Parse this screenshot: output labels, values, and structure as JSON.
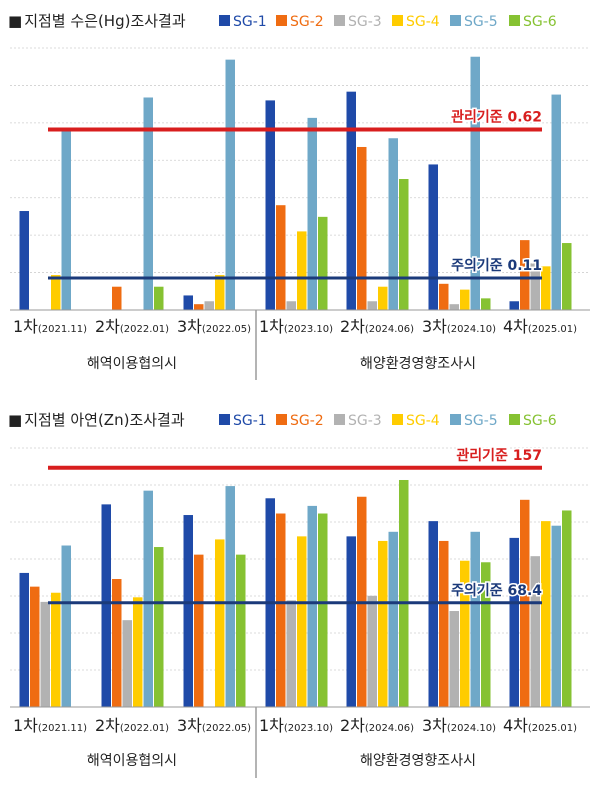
{
  "series_colors": {
    "SG-1": "#1f4aa8",
    "SG-2": "#ef6c12",
    "SG-3": "#b2b2b2",
    "SG-4": "#ffcc00",
    "SG-5": "#6fa8c8",
    "SG-6": "#86c232"
  },
  "chart_data": [
    {
      "type": "bar",
      "title": "지점별 수은(Hg)조사결과",
      "title_marker": "■",
      "series_names": [
        "SG-1",
        "SG-2",
        "SG-3",
        "SG-4",
        "SG-5",
        "SG-6"
      ],
      "categories": [
        {
          "main": "1차",
          "sub": "(2021.11)"
        },
        {
          "main": "2차",
          "sub": "(2022.01)"
        },
        {
          "main": "3차",
          "sub": "(2022.05)"
        },
        {
          "main": "1차",
          "sub": "(2023.10)"
        },
        {
          "main": "2차",
          "sub": "(2024.06)"
        },
        {
          "main": "3차",
          "sub": "(2024.10)"
        },
        {
          "main": "4차",
          "sub": "(2025.01)"
        }
      ],
      "groups": [
        {
          "label": "해역이용협의시",
          "span": [
            0,
            2
          ]
        },
        {
          "label": "해양환경영향조사시",
          "span": [
            3,
            6
          ]
        }
      ],
      "series": [
        {
          "name": "SG-1",
          "values": [
            0.34,
            0,
            0.05,
            0.72,
            0.75,
            0.5,
            0.03
          ]
        },
        {
          "name": "SG-2",
          "values": [
            0,
            0.08,
            0.02,
            0.36,
            0.56,
            0.09,
            0.24
          ]
        },
        {
          "name": "SG-3",
          "values": [
            0,
            0,
            0.03,
            0.03,
            0.03,
            0.02,
            0.16
          ]
        },
        {
          "name": "SG-4",
          "values": [
            0.12,
            0,
            0.12,
            0.27,
            0.08,
            0.07,
            0.15
          ]
        },
        {
          "name": "SG-5",
          "values": [
            0.62,
            0.73,
            0.86,
            0.66,
            0.59,
            0.87,
            0.74
          ]
        },
        {
          "name": "SG-6",
          "values": [
            0,
            0.08,
            0,
            0.32,
            0.45,
            0.04,
            0.23
          ]
        }
      ],
      "reference_lines": [
        {
          "label": "관리기준 0.62",
          "value": 0.62,
          "color": "#d81e1e"
        },
        {
          "label": "주의기준 0.11",
          "value": 0.11,
          "color": "#1b3a7a"
        }
      ],
      "ylim": [
        0,
        0.9
      ]
    },
    {
      "type": "bar",
      "title": "지점별 아연(Zn)조사결과",
      "title_marker": "■",
      "series_names": [
        "SG-1",
        "SG-2",
        "SG-3",
        "SG-4",
        "SG-5",
        "SG-6"
      ],
      "categories": [
        {
          "main": "1차",
          "sub": "(2021.11)"
        },
        {
          "main": "2차",
          "sub": "(2022.01)"
        },
        {
          "main": "3차",
          "sub": "(2022.05)"
        },
        {
          "main": "1차",
          "sub": "(2023.10)"
        },
        {
          "main": "2차",
          "sub": "(2024.06)"
        },
        {
          "main": "3차",
          "sub": "(2024.10)"
        },
        {
          "main": "4차",
          "sub": "(2025.01)"
        }
      ],
      "groups": [
        {
          "label": "해역이용협의시",
          "span": [
            0,
            2
          ]
        },
        {
          "label": "해양환경영향조사시",
          "span": [
            3,
            6
          ]
        }
      ],
      "series": [
        {
          "name": "SG-1",
          "values": [
            88,
            133,
            126,
            137,
            112,
            122,
            111
          ]
        },
        {
          "name": "SG-2",
          "values": [
            79,
            84,
            100,
            127,
            138,
            109,
            136
          ]
        },
        {
          "name": "SG-3",
          "values": [
            69,
            57,
            0,
            70,
            73,
            63,
            99
          ]
        },
        {
          "name": "SG-4",
          "values": [
            75,
            72,
            110,
            112,
            109,
            96,
            122
          ]
        },
        {
          "name": "SG-5",
          "values": [
            106,
            142,
            145,
            132,
            115,
            115,
            119
          ]
        },
        {
          "name": "SG-6",
          "values": [
            0,
            105,
            100,
            127,
            149,
            95,
            129
          ]
        }
      ],
      "reference_lines": [
        {
          "label": "관리기준 157",
          "value": 157,
          "color": "#d81e1e"
        },
        {
          "label": "주의기준 68.4",
          "value": 68.4,
          "color": "#1b3a7a"
        }
      ],
      "ylim": [
        0,
        170
      ]
    }
  ]
}
